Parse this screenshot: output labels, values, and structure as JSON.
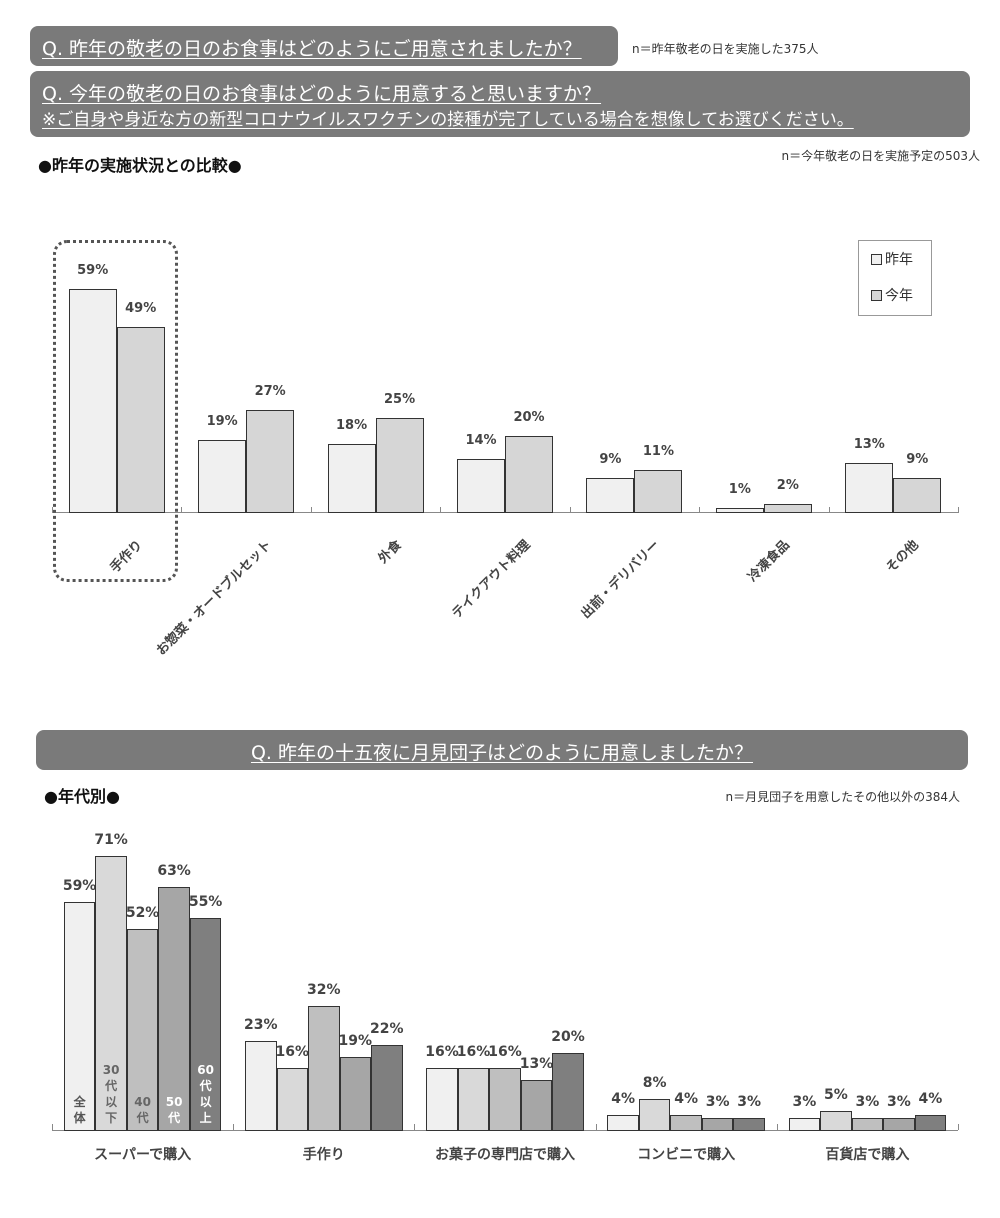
{
  "q1": {
    "title": "Q. 昨年の敬老の日のお食事はどのようにご用意されましたか？",
    "note": "n＝昨年敬老の日を実施した375人"
  },
  "q2": {
    "title": "Q. 今年の敬老の日のお食事はどのように用意すると思いますか？",
    "subtitle": "※ご自身や身近な方の新型コロナウイルスワクチンの接種が完了している場合を想像してお選びください。",
    "note": "n＝今年敬老の日を実施予定の503人"
  },
  "section1": {
    "label": "●昨年の実施状況との比較●"
  },
  "q3": {
    "title": "Q. 昨年の十五夜に月見団子はどのように用意しましたか？",
    "note": "n＝月見団子を用意したその他以外の384人"
  },
  "section2": {
    "label": "●年代別●"
  },
  "colors": {
    "header_bg": "#7a7a7a",
    "last_year": "#f0f0f0",
    "this_year": "#d6d6d6",
    "age_all": "#f0f0f0",
    "age_30": "#d9d9d9",
    "age_40": "#bfbfbf",
    "age_50": "#a6a6a6",
    "age_60": "#7f7f7f"
  },
  "chart_data": [
    {
      "type": "bar",
      "title": "●昨年の実施状況との比較●",
      "categories": [
        "手作り",
        "お惣菜・オードブルセット",
        "外食",
        "テイクアウト料理",
        "出前・デリバリー",
        "冷凍食品",
        "その他"
      ],
      "series": [
        {
          "name": "昨年",
          "values": [
            59,
            19,
            18,
            14,
            9,
            1,
            13
          ]
        },
        {
          "name": "今年",
          "values": [
            49,
            27,
            25,
            20,
            11,
            2,
            9
          ]
        }
      ],
      "value_labels": {
        "昨年": [
          "59%",
          "19%",
          "18%",
          "14%",
          "9%",
          "1%",
          "13%"
        ],
        "今年": [
          "49%",
          "27%",
          "25%",
          "20%",
          "11%",
          "2%",
          "9%"
        ]
      },
      "legend": [
        "昨年",
        "今年"
      ],
      "legend_position": "top-right",
      "highlighted_category": "手作り",
      "xlabel": "",
      "ylabel": "",
      "ylim": [
        0,
        70
      ],
      "grid": false
    },
    {
      "type": "bar",
      "title": "●年代別●",
      "categories": [
        "スーパーで購入",
        "手作り",
        "お菓子の専門店で購入",
        "コンビニで購入",
        "百貨店で購入"
      ],
      "series": [
        {
          "name": "全体",
          "values": [
            59,
            23,
            16,
            4,
            3
          ]
        },
        {
          "name": "30代以下",
          "values": [
            71,
            16,
            16,
            8,
            5
          ]
        },
        {
          "name": "40代",
          "values": [
            52,
            32,
            16,
            4,
            3
          ]
        },
        {
          "name": "50代",
          "values": [
            63,
            19,
            13,
            3,
            3
          ]
        },
        {
          "name": "60代以上",
          "values": [
            55,
            22,
            20,
            3,
            4
          ]
        }
      ],
      "value_labels": {
        "全体": [
          "59%",
          "23%",
          "16%",
          "4%",
          "3%"
        ],
        "30代以下": [
          "71%",
          "16%",
          "16%",
          "8%",
          "5%"
        ],
        "40代": [
          "52%",
          "32%",
          "16%",
          "4%",
          "3%"
        ],
        "50代": [
          "63%",
          "19%",
          "13%",
          "3%",
          "3%"
        ],
        "60代以上": [
          "55%",
          "22%",
          "20%",
          "3%",
          "4%"
        ]
      },
      "in_bar_labels": [
        "全\n体",
        "30\n代\n以\n下",
        "40\n代",
        "50\n代",
        "60\n代\n以\n上"
      ],
      "xlabel": "",
      "ylabel": "",
      "ylim": [
        0,
        75
      ],
      "grid": false
    }
  ]
}
